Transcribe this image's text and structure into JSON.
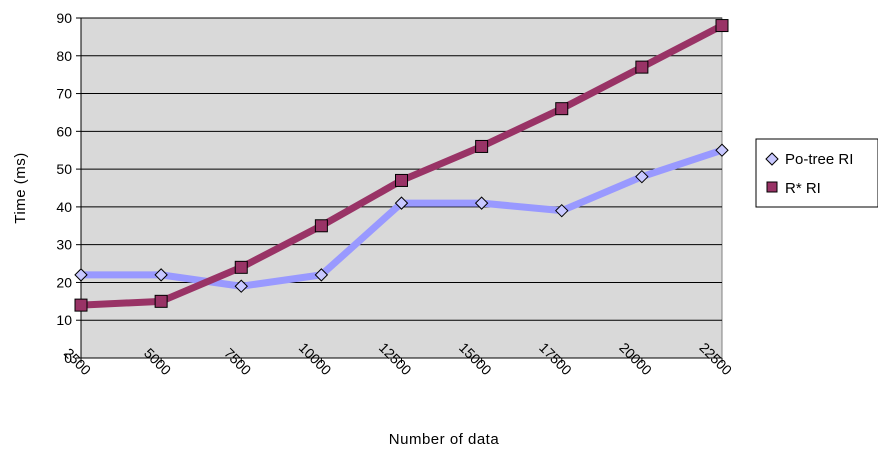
{
  "chart_data": {
    "type": "line",
    "xlabel": "Number of data",
    "ylabel": "Time (ms)",
    "categories": [
      "2500",
      "5000",
      "7500",
      "10000",
      "12500",
      "15000",
      "17500",
      "20000",
      "22500"
    ],
    "ylim": [
      0,
      90
    ],
    "yticks": [
      "0",
      "10",
      "20",
      "30",
      "40",
      "50",
      "60",
      "70",
      "80",
      "90"
    ],
    "grid": "horizontal",
    "legend_position": "right",
    "plot_background": "#d9d9d9",
    "series": [
      {
        "name": "Po-tree RI",
        "values": [
          22,
          22,
          19,
          22,
          41,
          41,
          39,
          48,
          55
        ],
        "line_color": "#9999ff",
        "marker": "diamond",
        "marker_fill": "#c8c8ff"
      },
      {
        "name": "R* RI",
        "values": [
          14,
          15,
          24,
          35,
          47,
          56,
          66,
          77,
          88
        ],
        "line_color": "#993366",
        "marker": "square",
        "marker_fill": "#993366"
      }
    ]
  }
}
